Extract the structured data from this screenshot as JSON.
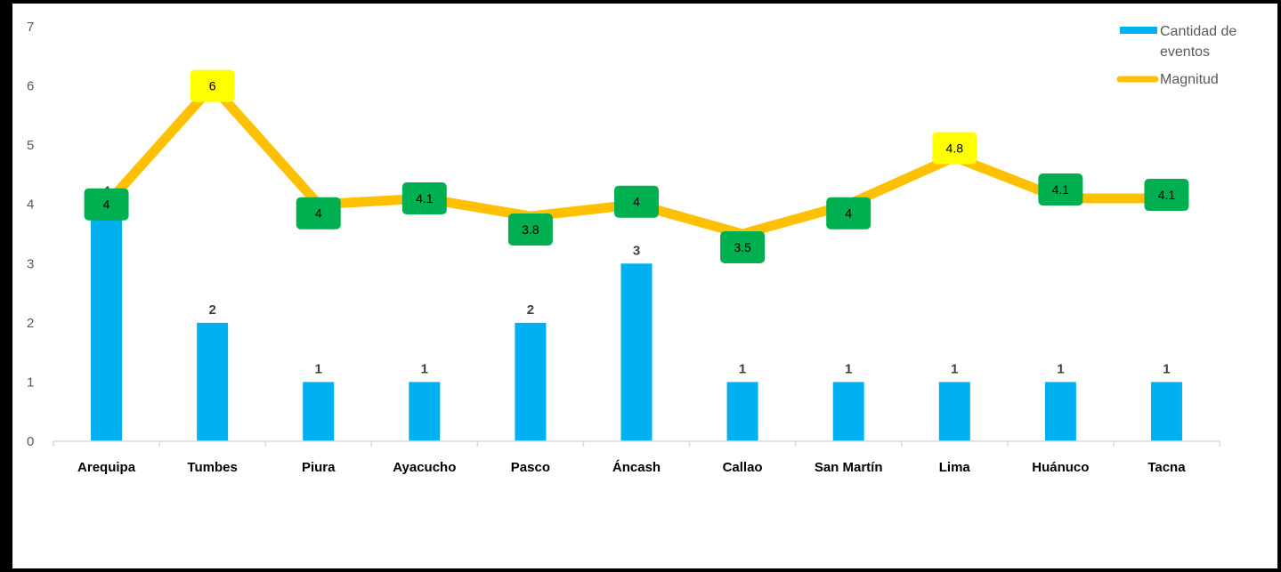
{
  "chart_data": {
    "type": "bar",
    "categories": [
      "Arequipa",
      "Tumbes",
      "Piura",
      "Ayacucho",
      "Pasco",
      "Áncash",
      "Callao",
      "San Martín",
      "Lima",
      "Huánuco",
      "Tacna"
    ],
    "series": [
      {
        "name": "Cantidad de eventos",
        "type": "bar",
        "values": [
          4,
          2,
          1,
          1,
          2,
          3,
          1,
          1,
          1,
          1,
          1
        ],
        "color": "#00B0F0"
      },
      {
        "name": "Magnitud",
        "type": "line",
        "values": [
          4,
          6,
          4,
          4.1,
          3.8,
          4,
          3.5,
          4,
          4.8,
          4.1,
          4.1
        ],
        "color": "#FFC000"
      }
    ],
    "yticks": [
      "0",
      "1",
      "2",
      "3",
      "4",
      "5",
      "6",
      "7"
    ],
    "ylim": [
      0,
      7
    ],
    "line_label_colors": [
      "#00B050",
      "#FFFF00",
      "#00B050",
      "#00B050",
      "#00B050",
      "#00B050",
      "#00B050",
      "#00B050",
      "#FFFF00",
      "#00B050",
      "#00B050"
    ],
    "legend": {
      "entries": [
        "Cantidad de eventos",
        "Magnitud"
      ],
      "position": "top-right"
    },
    "grid": false
  }
}
